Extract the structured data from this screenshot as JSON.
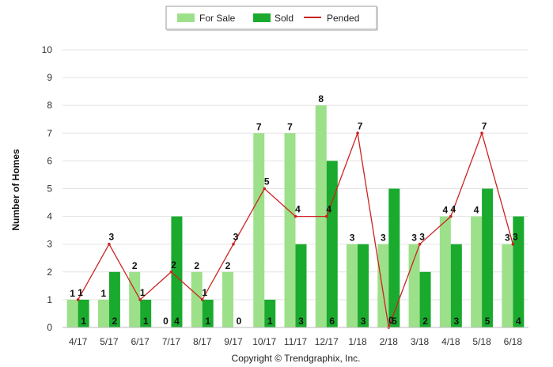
{
  "chart_data": {
    "type": "bar",
    "categories": [
      "4/17",
      "5/17",
      "6/17",
      "7/17",
      "8/17",
      "9/17",
      "10/17",
      "11/17",
      "12/17",
      "1/18",
      "2/18",
      "3/18",
      "4/18",
      "5/18",
      "6/18"
    ],
    "series": [
      {
        "name": "For Sale",
        "type": "bar",
        "color": "#9de08a",
        "values": [
          1,
          1,
          2,
          0,
          2,
          2,
          7,
          7,
          8,
          3,
          3,
          3,
          4,
          4,
          3
        ]
      },
      {
        "name": "Sold",
        "type": "bar",
        "color": "#1aaa2e",
        "values": [
          1,
          2,
          1,
          4,
          1,
          0,
          1,
          3,
          6,
          3,
          5,
          2,
          3,
          5,
          4
        ]
      },
      {
        "name": "Pended",
        "type": "line",
        "color": "#cc2222",
        "values": [
          1,
          3,
          1,
          2,
          1,
          3,
          5,
          4,
          4,
          7,
          0,
          3,
          4,
          7,
          3
        ]
      }
    ],
    "ylabel": "Number of Homes",
    "ylim": [
      0,
      10
    ],
    "yticks": [
      "0",
      "1",
      "2",
      "3",
      "4",
      "5",
      "6",
      "7",
      "8",
      "9",
      "10"
    ],
    "grid": true,
    "legend_position": "top-center"
  },
  "footer": {
    "copyright": "Copyright © Trendgraphix, Inc."
  }
}
